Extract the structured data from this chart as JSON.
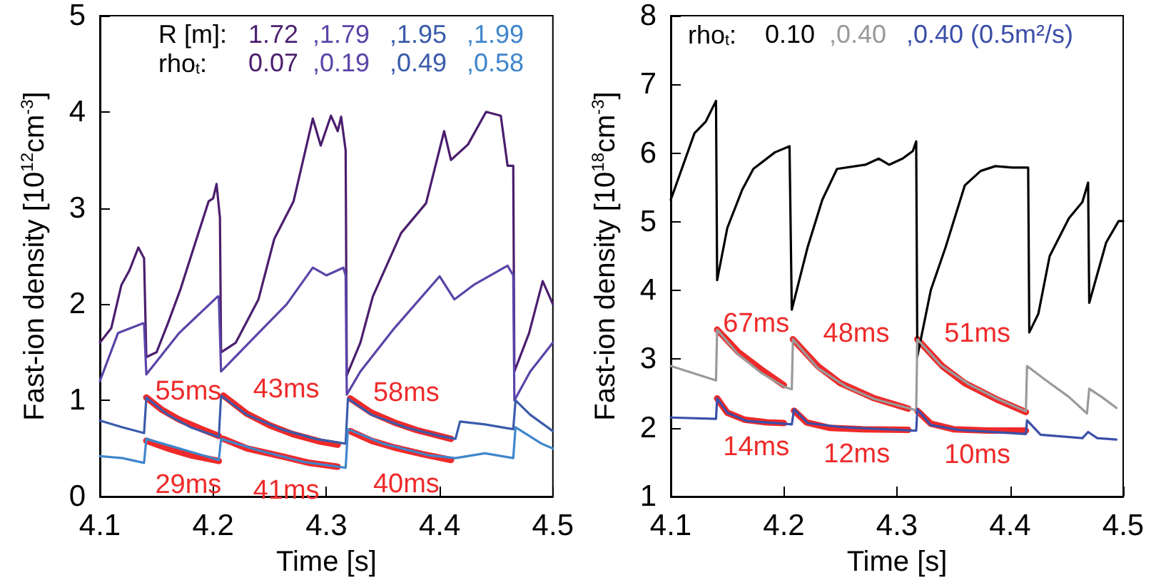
{
  "chart_data": [
    {
      "type": "line",
      "xlabel": "Time [s]",
      "ylabel": "Fast-ion density [10$^{12}$cm$^{-3}$]",
      "xlim": [
        4.1,
        4.5
      ],
      "ylim": [
        0,
        5
      ],
      "xticks": [
        4.1,
        4.2,
        4.3,
        4.4,
        4.5
      ],
      "yticks": [
        0,
        1,
        2,
        3,
        4,
        5
      ],
      "grid": false,
      "marker": "none",
      "legend": "top right",
      "legend_title": "R [m]:\nrho$_{t}$:",
      "series": [
        {
          "name": "1.72\n0.07",
          "color": "#4b1e6e",
          "x": [
            4.1,
            4.11,
            4.119,
            4.126,
            4.134,
            4.138,
            4.139,
            4.141,
            4.15,
            4.16,
            4.171,
            4.184,
            4.196,
            4.2,
            4.203,
            4.206,
            4.207,
            4.22,
            4.24,
            4.254,
            4.271,
            4.288,
            4.295,
            4.304,
            4.31,
            4.313,
            4.317,
            4.318,
            4.33,
            4.341,
            4.366,
            4.388,
            4.404,
            4.41,
            4.425,
            4.441,
            4.454,
            4.46,
            4.465,
            4.466,
            4.479,
            4.491,
            4.5
          ],
          "values": [
            1.6,
            1.75,
            2.2,
            2.35,
            2.59,
            2.5,
            2.48,
            1.45,
            1.5,
            1.8,
            2.15,
            2.63,
            3.07,
            3.1,
            3.25,
            2.9,
            1.5,
            1.6,
            2.05,
            2.68,
            3.07,
            3.93,
            3.65,
            3.96,
            3.8,
            3.95,
            3.6,
            1.26,
            1.6,
            2.08,
            2.74,
            3.05,
            3.8,
            3.5,
            3.66,
            4.0,
            3.96,
            3.44,
            3.44,
            1.3,
            1.7,
            2.24,
            2.0
          ]
        },
        {
          "name": ",1.79\n,0.19",
          "color": "#5a44a8",
          "x": [
            4.1,
            4.116,
            4.138,
            4.139,
            4.141,
            4.17,
            4.204,
            4.205,
            4.207,
            4.24,
            4.265,
            4.288,
            4.3,
            4.315,
            4.317,
            4.318,
            4.33,
            4.36,
            4.4,
            4.413,
            4.43,
            4.46,
            4.465,
            4.466,
            4.48,
            4.5
          ],
          "values": [
            1.2,
            1.7,
            1.8,
            1.8,
            1.27,
            1.7,
            2.08,
            2.08,
            1.3,
            1.7,
            2.0,
            2.38,
            2.3,
            2.38,
            2.3,
            1.06,
            1.3,
            1.75,
            2.29,
            2.05,
            2.2,
            2.4,
            2.3,
            1.0,
            1.3,
            1.6
          ]
        },
        {
          "name": ",1.95\n,0.49",
          "color": "#3a5bab",
          "x": [
            4.1,
            4.12,
            4.139,
            4.141,
            4.16,
            4.18,
            4.205,
            4.207,
            4.23,
            4.26,
            4.29,
            4.317,
            4.319,
            4.34,
            4.37,
            4.4,
            4.414,
            4.418,
            4.44,
            4.465,
            4.467,
            4.48,
            4.5
          ],
          "values": [
            0.79,
            0.72,
            0.66,
            1.03,
            0.85,
            0.72,
            0.62,
            1.05,
            0.85,
            0.7,
            0.6,
            0.55,
            1.02,
            0.85,
            0.72,
            0.63,
            0.6,
            0.78,
            0.75,
            0.7,
            1.0,
            0.85,
            0.68
          ]
        },
        {
          "name": ",1.99\n,0.58",
          "color": "#3f86cc",
          "x": [
            4.1,
            4.12,
            4.139,
            4.141,
            4.17,
            4.205,
            4.207,
            4.24,
            4.28,
            4.317,
            4.319,
            4.35,
            4.39,
            4.414,
            4.44,
            4.465,
            4.467,
            4.49,
            4.5
          ],
          "values": [
            0.42,
            0.4,
            0.35,
            0.6,
            0.5,
            0.38,
            0.6,
            0.48,
            0.36,
            0.3,
            0.7,
            0.55,
            0.43,
            0.4,
            0.45,
            0.4,
            0.72,
            0.55,
            0.5
          ]
        },
        {
          "color": "#ee2a2a",
          "x": [
            4.141,
            4.155,
            4.17,
            4.19,
            4.205
          ],
          "values": [
            1.03,
            0.9,
            0.8,
            0.7,
            0.63
          ]
        },
        {
          "color": "#ee2a2a",
          "x": [
            4.209,
            4.23,
            4.25,
            4.27,
            4.295,
            4.31
          ],
          "values": [
            1.05,
            0.86,
            0.74,
            0.65,
            0.57,
            0.54
          ]
        },
        {
          "color": "#ee2a2a",
          "x": [
            4.321,
            4.34,
            4.36,
            4.38,
            4.41
          ],
          "values": [
            1.02,
            0.87,
            0.77,
            0.69,
            0.6
          ]
        },
        {
          "color": "#ee2a2a",
          "x": [
            4.141,
            4.16,
            4.18,
            4.205
          ],
          "values": [
            0.58,
            0.5,
            0.43,
            0.37
          ]
        },
        {
          "color": "#ee2a2a",
          "x": [
            4.209,
            4.23,
            4.26,
            4.285,
            4.31
          ],
          "values": [
            0.6,
            0.5,
            0.42,
            0.35,
            0.31
          ]
        },
        {
          "color": "#ee2a2a",
          "x": [
            4.321,
            4.34,
            4.36,
            4.385,
            4.41
          ],
          "values": [
            0.68,
            0.58,
            0.51,
            0.44,
            0.38
          ]
        }
      ],
      "annotations": [
        "55ms",
        "43ms",
        "58ms",
        "29ms",
        "41ms",
        "40ms"
      ]
    },
    {
      "type": "line",
      "xlabel": "Time [s]",
      "ylabel": "Fast-ion density [10$^{18}$cm$^{-3}$]",
      "xlim": [
        4.1,
        4.5
      ],
      "ylim": [
        1,
        8
      ],
      "xticks": [
        4.1,
        4.2,
        4.3,
        4.4,
        4.5
      ],
      "yticks": [
        1,
        2,
        3,
        4,
        5,
        6,
        7,
        8
      ],
      "grid": false,
      "marker": "none",
      "legend": "top right",
      "legend_title": "rho$_{t}$:",
      "series": [
        {
          "name": "0.10",
          "color": "#000000",
          "x": [
            4.1,
            4.121,
            4.131,
            4.14,
            4.141,
            4.15,
            4.163,
            4.173,
            4.192,
            4.205,
            4.207,
            4.221,
            4.234,
            4.247,
            4.272,
            4.284,
            4.293,
            4.305,
            4.314,
            4.317,
            4.318,
            4.33,
            4.343,
            4.36,
            4.374,
            4.387,
            4.402,
            4.416,
            4.417,
            4.425,
            4.435,
            4.452,
            4.464,
            4.469,
            4.47,
            4.485,
            4.496,
            4.5
          ],
          "values": [
            5.32,
            6.29,
            6.46,
            6.76,
            4.15,
            4.91,
            5.46,
            5.77,
            6.01,
            6.1,
            3.72,
            4.63,
            5.32,
            5.77,
            5.83,
            5.92,
            5.83,
            5.92,
            6.03,
            6.17,
            3.04,
            4.01,
            4.63,
            5.53,
            5.74,
            5.81,
            5.79,
            5.79,
            3.39,
            3.66,
            4.5,
            5.05,
            5.29,
            5.57,
            3.82,
            4.7,
            5.01,
            5.01
          ]
        },
        {
          "name": ",0.40",
          "color": "#9a9a9a",
          "x": [
            4.1,
            4.14,
            4.141,
            4.159,
            4.18,
            4.2,
            4.207,
            4.208,
            4.23,
            4.255,
            4.28,
            4.314,
            4.317,
            4.318,
            4.339,
            4.364,
            4.389,
            4.414,
            4.415,
            4.431,
            4.452,
            4.468,
            4.47,
            4.481,
            4.494
          ],
          "values": [
            2.9,
            2.69,
            3.43,
            3.08,
            2.8,
            2.6,
            2.56,
            3.29,
            2.87,
            2.6,
            2.42,
            2.27,
            2.25,
            3.29,
            2.91,
            2.63,
            2.42,
            2.24,
            2.9,
            2.7,
            2.45,
            2.21,
            2.57,
            2.45,
            2.29
          ]
        },
        {
          "name": ",0.40 (0.5m²/s)",
          "color": "#3a4fa8",
          "x": [
            4.1,
            4.14,
            4.141,
            4.15,
            4.167,
            4.2,
            4.207,
            4.209,
            4.221,
            4.251,
            4.314,
            4.317,
            4.318,
            4.33,
            4.355,
            4.414,
            4.415,
            4.427,
            4.464,
            4.469,
            4.477,
            4.494
          ],
          "values": [
            2.15,
            2.13,
            2.43,
            2.22,
            2.1,
            2.06,
            2.05,
            2.27,
            2.07,
            2.01,
            1.96,
            1.96,
            2.27,
            2.04,
            1.97,
            1.91,
            2.11,
            1.9,
            1.85,
            1.94,
            1.85,
            1.83
          ]
        },
        {
          "color": "#ee2a2a",
          "x": [
            4.141,
            4.16,
            4.18,
            4.2
          ],
          "values": [
            3.43,
            3.1,
            2.85,
            2.62
          ]
        },
        {
          "color": "#ee2a2a",
          "x": [
            4.208,
            4.23,
            4.25,
            4.28,
            4.31
          ],
          "values": [
            3.29,
            2.9,
            2.65,
            2.43,
            2.28
          ]
        },
        {
          "color": "#ee2a2a",
          "x": [
            4.318,
            4.34,
            4.36,
            4.39,
            4.414
          ],
          "values": [
            3.29,
            2.9,
            2.65,
            2.4,
            2.23
          ]
        },
        {
          "color": "#ee2a2a",
          "x": [
            4.141,
            4.15,
            4.165,
            4.185,
            4.2
          ],
          "values": [
            2.43,
            2.22,
            2.12,
            2.08,
            2.07
          ]
        },
        {
          "color": "#ee2a2a",
          "x": [
            4.209,
            4.22,
            4.24,
            4.27,
            4.31
          ],
          "values": [
            2.25,
            2.08,
            2.0,
            1.98,
            1.97
          ]
        },
        {
          "color": "#ee2a2a",
          "x": [
            4.318,
            4.33,
            4.35,
            4.38,
            4.414
          ],
          "values": [
            2.25,
            2.06,
            1.98,
            1.96,
            1.96
          ]
        }
      ],
      "annotations": [
        "67ms",
        "48ms",
        "51ms",
        "14ms",
        "12ms",
        "10ms"
      ]
    }
  ]
}
